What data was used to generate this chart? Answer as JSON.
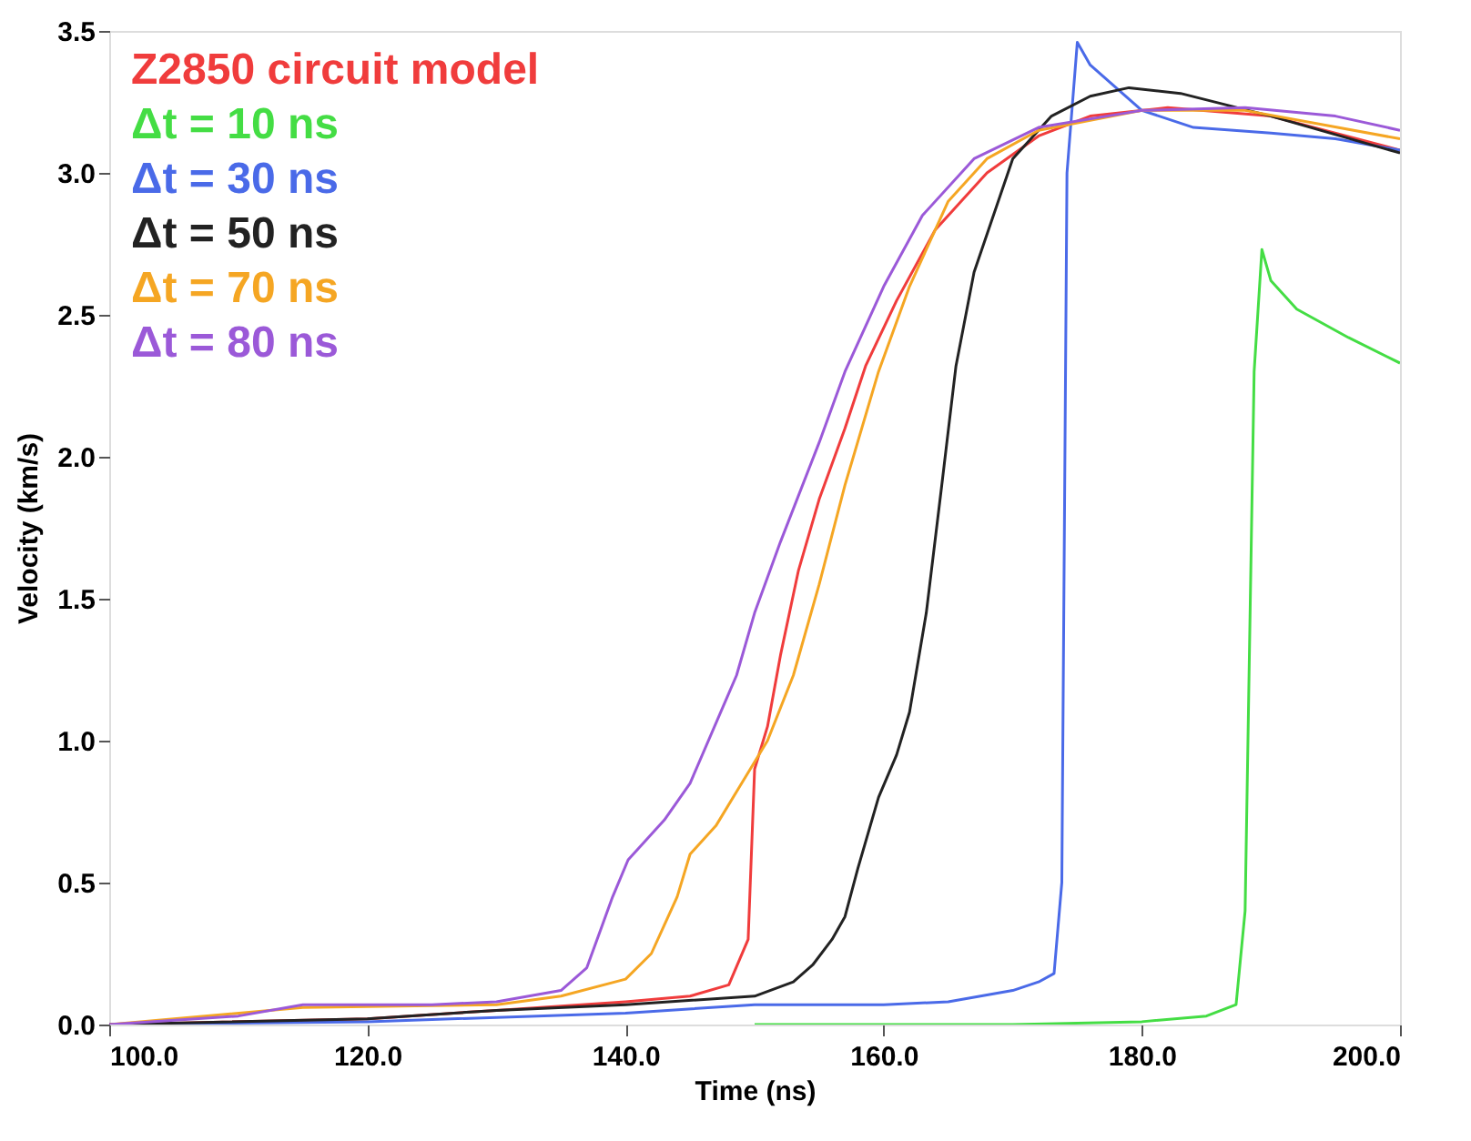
{
  "chart_data": {
    "type": "line",
    "xlabel": "Time (ns)",
    "ylabel": "Velocity (km/s)",
    "xlim": [
      100,
      200
    ],
    "ylim": [
      0,
      3.5
    ],
    "xticks": [
      {
        "value": 100,
        "label": "100.0"
      },
      {
        "value": 120,
        "label": "120.0"
      },
      {
        "value": 140,
        "label": "140.0"
      },
      {
        "value": 160,
        "label": "160.0"
      },
      {
        "value": 180,
        "label": "180.0"
      },
      {
        "value": 200,
        "label": "200.0"
      }
    ],
    "yticks": [
      {
        "value": 0,
        "label": "0.0"
      },
      {
        "value": 0.5,
        "label": "0.5"
      },
      {
        "value": 1,
        "label": "1.0"
      },
      {
        "value": 1.5,
        "label": "1.5"
      },
      {
        "value": 2,
        "label": "2.0"
      },
      {
        "value": 2.5,
        "label": "2.5"
      },
      {
        "value": 3,
        "label": "3.0"
      },
      {
        "value": 3.5,
        "label": "3.5"
      }
    ],
    "grid": false,
    "legend": "top left",
    "marker": "none",
    "line_style": "solid",
    "series": [
      {
        "name": "Z2850 circuit model",
        "color": "#f03c3c",
        "x": [
          100,
          120,
          130,
          140,
          145,
          148,
          149.5,
          150,
          151,
          152,
          153.4,
          155,
          157,
          158.6,
          161,
          164,
          168,
          172,
          176,
          182,
          190,
          200
        ],
        "values": [
          0,
          0.02,
          0.05,
          0.08,
          0.1,
          0.14,
          0.3,
          0.9,
          1.05,
          1.3,
          1.6,
          1.85,
          2.1,
          2.32,
          2.55,
          2.8,
          3.0,
          3.13,
          3.2,
          3.23,
          3.2,
          3.08
        ]
      },
      {
        "name": "Δt = 10 ns",
        "color": "#44dd44",
        "x": [
          150,
          170,
          180,
          185,
          187.3,
          188,
          188.7,
          189.3,
          190,
          192,
          196,
          200
        ],
        "values": [
          0,
          0,
          0.01,
          0.03,
          0.07,
          0.4,
          2.3,
          2.73,
          2.62,
          2.52,
          2.42,
          2.33
        ]
      },
      {
        "name": "Δt = 30 ns",
        "color": "#4a6ae8",
        "x": [
          100,
          120,
          140,
          150,
          160,
          165,
          170,
          172,
          173.2,
          173.8,
          174.2,
          175,
          176,
          178,
          180,
          184,
          190,
          195,
          200
        ],
        "values": [
          0,
          0.01,
          0.04,
          0.07,
          0.07,
          0.08,
          0.12,
          0.15,
          0.18,
          0.5,
          3.0,
          3.46,
          3.38,
          3.3,
          3.22,
          3.16,
          3.14,
          3.12,
          3.08
        ]
      },
      {
        "name": "Δt = 50 ns",
        "color": "#222222",
        "x": [
          100,
          120,
          130,
          140,
          150,
          153,
          154.5,
          156,
          157,
          158,
          159.6,
          161,
          162,
          163.3,
          164.5,
          165.6,
          167,
          170,
          173,
          176,
          179,
          183,
          190,
          200
        ],
        "values": [
          0,
          0.02,
          0.05,
          0.07,
          0.1,
          0.15,
          0.21,
          0.3,
          0.38,
          0.55,
          0.8,
          0.95,
          1.1,
          1.45,
          1.9,
          2.32,
          2.65,
          3.05,
          3.2,
          3.27,
          3.3,
          3.28,
          3.2,
          3.07
        ]
      },
      {
        "name": "Δt = 70 ns",
        "color": "#f5a623",
        "x": [
          100,
          115,
          130,
          135,
          140,
          142,
          144,
          145,
          147,
          149,
          151,
          153,
          155,
          157,
          159.6,
          162,
          165,
          168,
          172,
          180,
          188,
          200
        ],
        "values": [
          0,
          0.06,
          0.07,
          0.1,
          0.16,
          0.25,
          0.45,
          0.6,
          0.7,
          0.85,
          1.0,
          1.23,
          1.55,
          1.9,
          2.3,
          2.6,
          2.9,
          3.05,
          3.15,
          3.22,
          3.22,
          3.12
        ]
      },
      {
        "name": "Δt = 80 ns",
        "color": "#9b59d8",
        "x": [
          100,
          110,
          115,
          125,
          130,
          135,
          137,
          139,
          140.2,
          143,
          145,
          148.6,
          150,
          152,
          155,
          157,
          160,
          163,
          167,
          172,
          180,
          188,
          195,
          200
        ],
        "values": [
          0,
          0.03,
          0.07,
          0.07,
          0.08,
          0.12,
          0.2,
          0.45,
          0.58,
          0.72,
          0.85,
          1.23,
          1.45,
          1.7,
          2.05,
          2.3,
          2.6,
          2.85,
          3.05,
          3.16,
          3.22,
          3.23,
          3.2,
          3.15
        ]
      }
    ]
  }
}
